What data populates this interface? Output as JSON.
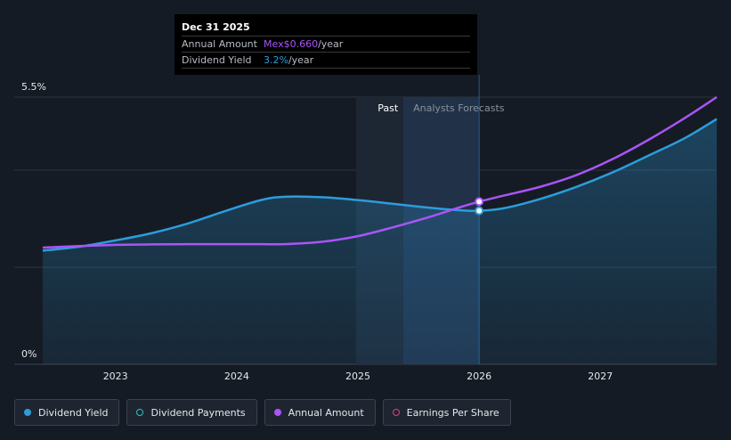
{
  "chart_data": {
    "type": "line",
    "y_axis": {
      "labels": [
        "5.5%",
        "0%"
      ],
      "ylim": [
        0,
        5.5
      ]
    },
    "x_axis": {
      "tick_labels": [
        "2023",
        "2024",
        "2025",
        "2026",
        "2027"
      ],
      "xlim": [
        2022.4,
        2027.96
      ]
    },
    "region_labels": {
      "past": "Past",
      "forecast": "Analysts Forecasts"
    },
    "series": [
      {
        "name": "Dividend Yield",
        "color": "#2d9cdb",
        "unit": "%",
        "x": [
          2022.4,
          2022.7,
          2023.0,
          2023.3,
          2023.6,
          2023.9,
          2024.2,
          2024.4,
          2024.7,
          2025.0,
          2025.3,
          2025.6,
          2025.85,
          2026.0,
          2026.2,
          2026.5,
          2026.8,
          2027.1,
          2027.4,
          2027.7,
          2027.96
        ],
        "values": [
          2.34,
          2.42,
          2.55,
          2.7,
          2.9,
          3.15,
          3.38,
          3.45,
          3.44,
          3.38,
          3.3,
          3.22,
          3.17,
          3.16,
          3.21,
          3.4,
          3.65,
          3.95,
          4.3,
          4.66,
          5.05
        ]
      },
      {
        "name": "Annual Amount",
        "color": "#a855f7",
        "unit": "Mex$",
        "x": [
          2022.4,
          2022.7,
          2023.0,
          2023.3,
          2023.6,
          2023.9,
          2024.2,
          2024.4,
          2024.7,
          2025.0,
          2025.3,
          2025.6,
          2025.85,
          2026.0,
          2026.2,
          2026.5,
          2026.8,
          2027.1,
          2027.4,
          2027.7,
          2027.96
        ],
        "values": [
          0.46,
          0.467,
          0.472,
          0.474,
          0.475,
          0.475,
          0.475,
          0.475,
          0.485,
          0.51,
          0.55,
          0.595,
          0.637,
          0.66,
          0.686,
          0.724,
          0.775,
          0.845,
          0.93,
          1.025,
          1.115
        ]
      }
    ],
    "tooltip": {
      "date": "Dec 31 2025",
      "x": 2026.0,
      "rows": [
        {
          "label": "Annual Amount",
          "value": "Mex$0.660",
          "unit": "/year",
          "color": "#a855f7"
        },
        {
          "label": "Dividend Yield",
          "value": "3.2%",
          "unit": "/year",
          "color": "#2d9cdb"
        }
      ]
    },
    "grid": true
  },
  "legend": {
    "items": [
      {
        "label": "Dividend Yield",
        "color": "#2d9cdb",
        "filled": true
      },
      {
        "label": "Dividend Payments",
        "color": "#2ec4b6",
        "filled": false
      },
      {
        "label": "Annual Amount",
        "color": "#a855f7",
        "filled": true
      },
      {
        "label": "Earnings Per Share",
        "color": "#d6457a",
        "filled": false
      }
    ]
  }
}
